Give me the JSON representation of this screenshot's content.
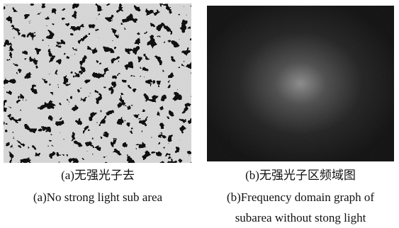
{
  "panels": [
    {
      "caption_zh": "(a)无强光子去",
      "caption_en": [
        "(a)No strong light sub area"
      ]
    },
    {
      "caption_zh": "(b)无强光子区频域图",
      "caption_en": [
        "(b)Frequency domain graph of",
        "subarea without stong light"
      ]
    }
  ]
}
